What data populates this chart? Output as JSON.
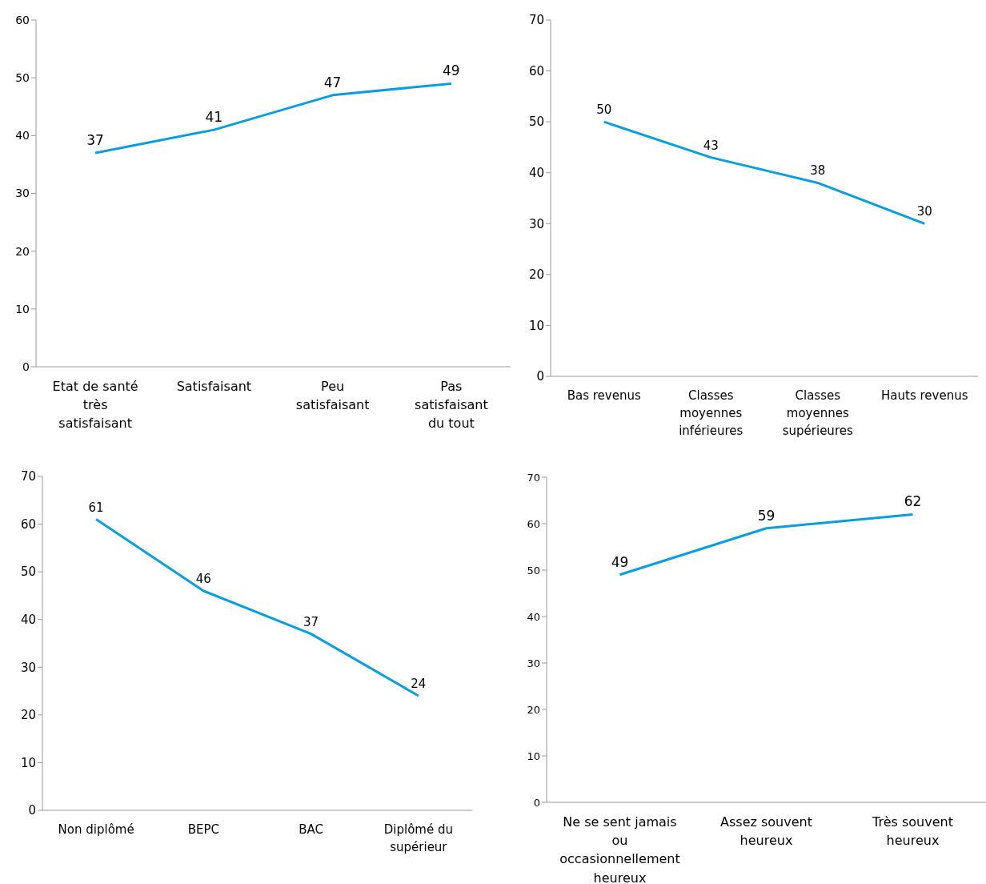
{
  "chart_data": [
    {
      "type": "line",
      "categories": [
        "Etat de santé très satisfaisant",
        "Satisfaisant",
        "Peu satisfaisant",
        "Pas satisfaisant du tout"
      ],
      "values": [
        37,
        41,
        47,
        49
      ],
      "color": "#0a9ddf",
      "ylim": [
        0,
        60
      ],
      "yticks": [
        0,
        10,
        20,
        30,
        40,
        50,
        60
      ],
      "data_labels": true,
      "marker": "none"
    },
    {
      "type": "line",
      "categories": [
        "Bas revenus",
        "Classes moyennes inférieures",
        "Classes moyennes supérieures",
        "Hauts revenus"
      ],
      "values": [
        50,
        43,
        38,
        30
      ],
      "color": "#0a9ddf",
      "ylim": [
        0,
        70
      ],
      "yticks": [
        0,
        10,
        20,
        30,
        40,
        50,
        60,
        70
      ],
      "data_labels": true,
      "marker": "none"
    },
    {
      "type": "line",
      "categories": [
        "Non diplômé",
        "BEPC",
        "BAC",
        "Diplômé du supérieur"
      ],
      "values": [
        61,
        46,
        37,
        24
      ],
      "color": "#0a9ddf",
      "ylim": [
        0,
        70
      ],
      "yticks": [
        0,
        10,
        20,
        30,
        40,
        50,
        60,
        70
      ],
      "data_labels": true,
      "marker": "none"
    },
    {
      "type": "line",
      "categories": [
        "Ne se sent jamais ou occasionnellement heureux",
        "Assez souvent heureux",
        "Très souvent heureux"
      ],
      "values": [
        49,
        59,
        62
      ],
      "color": "#0a9ddf",
      "ylim": [
        0,
        70
      ],
      "yticks": [
        0,
        10,
        20,
        30,
        40,
        50,
        60,
        70
      ],
      "data_labels": true,
      "marker": "none"
    }
  ]
}
